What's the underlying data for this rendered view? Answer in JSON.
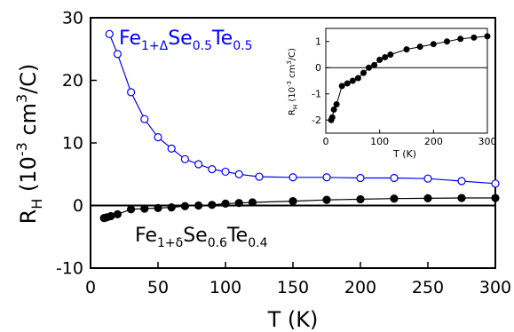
{
  "chart_data": [
    {
      "type": "line",
      "xlabel": "T (K)",
      "ylabel": "R_H (10^-3 cm^3/C)",
      "xlim": [
        0,
        300
      ],
      "ylim": [
        -10,
        30
      ],
      "x_ticks": [
        0,
        50,
        100,
        150,
        200,
        250,
        300
      ],
      "y_ticks": [
        -10,
        0,
        10,
        20,
        30
      ],
      "zero_line": true,
      "grid": false,
      "series": [
        {
          "name": "Fe1+ΔSe0.5Te0.5",
          "color": "#0000ff",
          "marker": "open-circle",
          "points": [
            [
              14,
              27.4
            ],
            [
              20,
              24.2
            ],
            [
              30,
              18.1
            ],
            [
              40,
              13.8
            ],
            [
              50,
              10.9
            ],
            [
              60,
              9.1
            ],
            [
              70,
              7.4
            ],
            [
              80,
              6.6
            ],
            [
              90,
              5.8
            ],
            [
              100,
              5.4
            ],
            [
              110,
              5.0
            ],
            [
              125,
              4.6
            ],
            [
              150,
              4.5
            ],
            [
              175,
              4.5
            ],
            [
              200,
              4.4
            ],
            [
              225,
              4.4
            ],
            [
              250,
              4.3
            ],
            [
              275,
              3.9
            ],
            [
              300,
              3.5
            ]
          ]
        },
        {
          "name": "Fe1+δSe0.6Te0.4",
          "color": "#000000",
          "marker": "filled-circle",
          "points": [
            [
              10,
              -2.0
            ],
            [
              12,
              -1.9
            ],
            [
              15,
              -1.7
            ],
            [
              20,
              -1.4
            ],
            [
              30,
              -0.6
            ],
            [
              40,
              -0.5
            ],
            [
              50,
              -0.4
            ],
            [
              60,
              -0.3
            ],
            [
              70,
              -0.1
            ],
            [
              80,
              0.0
            ],
            [
              90,
              0.1
            ],
            [
              100,
              0.3
            ],
            [
              110,
              0.4
            ],
            [
              120,
              0.5
            ],
            [
              150,
              0.7
            ],
            [
              175,
              0.9
            ],
            [
              200,
              1.0
            ],
            [
              225,
              1.1
            ],
            [
              250,
              1.15
            ],
            [
              275,
              1.2
            ],
            [
              300,
              1.2
            ]
          ]
        }
      ]
    },
    {
      "type": "line",
      "xlabel": "T (K)",
      "ylabel": "R_H (10^-3 cm^3/C)",
      "xlim": [
        0,
        300
      ],
      "ylim": [
        -2.5,
        1.5
      ],
      "x_ticks": [
        0,
        100,
        200,
        300
      ],
      "y_ticks": [
        -2,
        -1,
        0,
        1
      ],
      "zero_line": true,
      "series": [
        {
          "name": "Fe1+δSe0.6Te0.4",
          "color": "#000000",
          "marker": "filled-circle",
          "points": [
            [
              10,
              -2.0
            ],
            [
              12,
              -1.9
            ],
            [
              15,
              -1.6
            ],
            [
              20,
              -1.4
            ],
            [
              30,
              -0.7
            ],
            [
              40,
              -0.6
            ],
            [
              50,
              -0.5
            ],
            [
              60,
              -0.4
            ],
            [
              70,
              -0.2
            ],
            [
              80,
              0.0
            ],
            [
              90,
              0.1
            ],
            [
              100,
              0.3
            ],
            [
              110,
              0.4
            ],
            [
              120,
              0.5
            ],
            [
              150,
              0.7
            ],
            [
              175,
              0.8
            ],
            [
              200,
              0.9
            ],
            [
              225,
              1.0
            ],
            [
              250,
              1.1
            ],
            [
              275,
              1.15
            ],
            [
              300,
              1.2
            ]
          ]
        }
      ]
    }
  ],
  "labels": {
    "series1": {
      "base": "Fe",
      "sub1": "1+Δ",
      "mid": "Se",
      "sub2": "0.5",
      "end": "Te",
      "sub3": "0.5"
    },
    "series2": {
      "base": "Fe",
      "sub1": "1+δ",
      "mid": "Se",
      "sub2": "0.6",
      "end": "Te",
      "sub3": "0.4"
    },
    "ylabel": {
      "pre": "R",
      "sub": "H",
      "mid1": " (10",
      "sup1": "-3",
      "mid2": " cm",
      "sup2": "3",
      "post": "/C)"
    },
    "xlabel": "T (K)"
  }
}
